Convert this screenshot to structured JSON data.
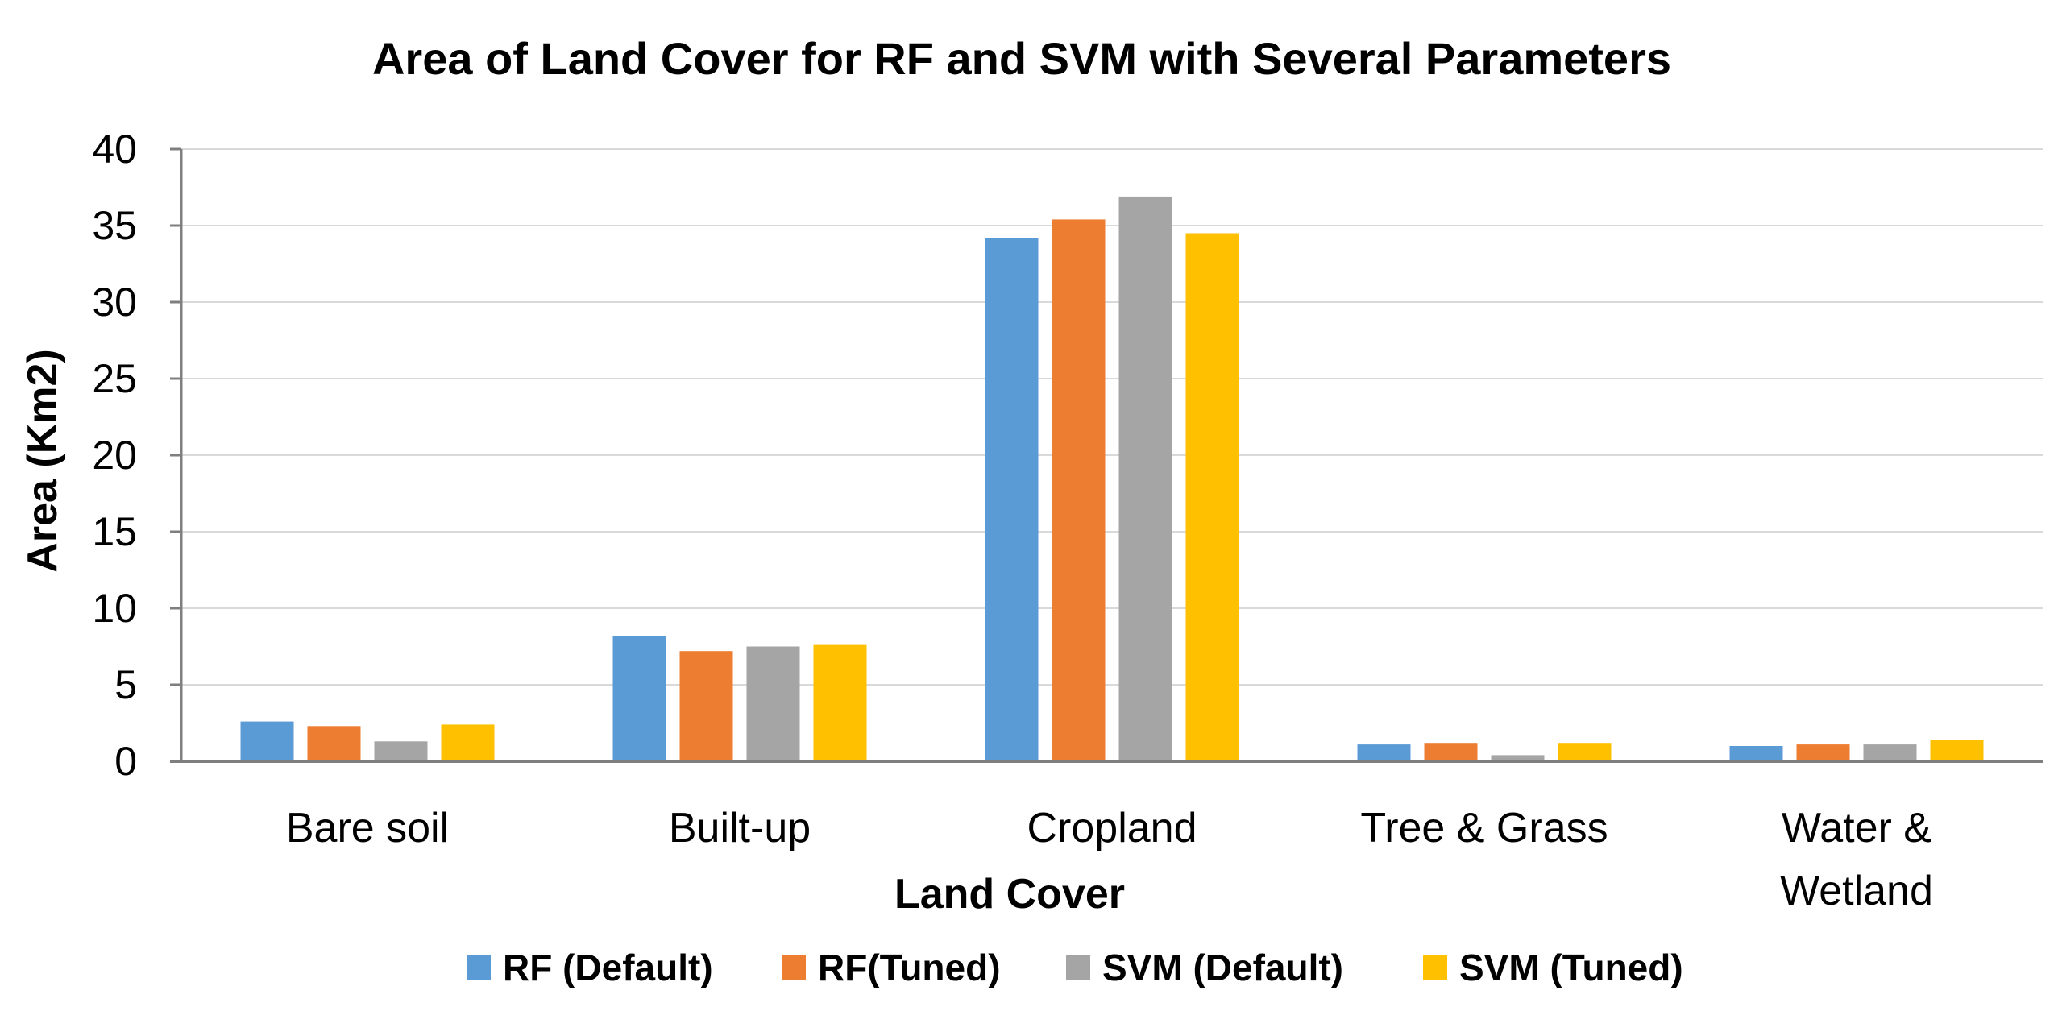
{
  "chart_data": {
    "type": "bar",
    "title": "Area of Land Cover for RF and SVM  with Several Parameters",
    "xlabel": "Land Cover",
    "ylabel": "Area (Km2)",
    "ylim": [
      0,
      40
    ],
    "yticks": [
      0,
      5,
      10,
      15,
      20,
      25,
      30,
      35,
      40
    ],
    "grid": true,
    "legend_position": "bottom",
    "categories": [
      [
        "Bare soil"
      ],
      [
        "Built-up"
      ],
      [
        "Cropland"
      ],
      [
        "Tree & Grass"
      ],
      [
        "Water &",
        "Wetland"
      ]
    ],
    "series": [
      {
        "name": "RF (Default)",
        "color": "#5B9BD5",
        "values": [
          2.6,
          8.2,
          34.2,
          1.1,
          1.0
        ]
      },
      {
        "name": "RF(Tuned)",
        "color": "#ED7D31",
        "values": [
          2.3,
          7.2,
          35.4,
          1.2,
          1.1
        ]
      },
      {
        "name": "SVM (Default)",
        "color": "#A5A5A5",
        "values": [
          1.3,
          7.5,
          36.9,
          0.4,
          1.1
        ]
      },
      {
        "name": "SVM (Tuned)",
        "color": "#FFC000",
        "values": [
          2.4,
          7.6,
          34.5,
          1.2,
          1.4
        ]
      }
    ]
  }
}
